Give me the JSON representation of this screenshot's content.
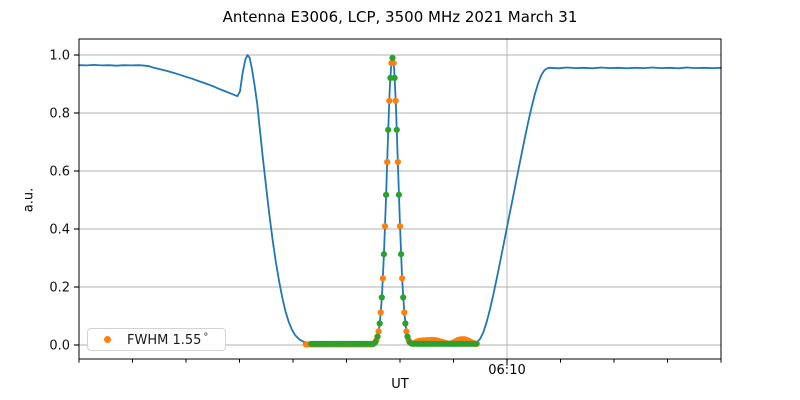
{
  "chart_data": {
    "type": "line",
    "title": "Antenna E3006, LCP, 3500 MHz 2021 March 31",
    "xlabel": "UT",
    "ylabel": "a.u.",
    "ylim": [
      -0.05,
      1.05
    ],
    "grid": {
      "horizontal": true,
      "vertical_at_major_ticks": true,
      "color": "#b0b0b0"
    },
    "yticks": {
      "values": [
        0.0,
        0.2,
        0.4,
        0.6,
        0.8,
        1.0
      ],
      "labels": [
        "0.0",
        "0.2",
        "0.4",
        "0.6",
        "0.8",
        "1.0"
      ]
    },
    "xaxis": {
      "range_minutes": [
        0,
        60
      ],
      "minor_tick_step_minutes": 5,
      "major_ticks": [
        {
          "t_minutes": 40,
          "label": "06:10"
        }
      ]
    },
    "legend": {
      "position": "lower left",
      "entries": [
        {
          "label": "FWHM 1.55",
          "degree_symbol": "°",
          "marker_color": "#ff7f0e"
        }
      ]
    },
    "series": [
      {
        "name": "drift-scan-signal",
        "type": "line",
        "color": "#1f77b4",
        "points": [
          [
            0.0,
            0.965
          ],
          [
            0.7,
            0.964
          ],
          [
            1.4,
            0.966
          ],
          [
            2.1,
            0.964
          ],
          [
            2.8,
            0.965
          ],
          [
            3.5,
            0.963
          ],
          [
            4.2,
            0.965
          ],
          [
            4.9,
            0.964
          ],
          [
            5.6,
            0.965
          ],
          [
            6.2,
            0.963
          ],
          [
            6.6,
            0.961
          ],
          [
            7.0,
            0.956
          ],
          [
            7.6,
            0.951
          ],
          [
            8.2,
            0.945
          ],
          [
            8.8,
            0.939
          ],
          [
            9.4,
            0.932
          ],
          [
            10.0,
            0.925
          ],
          [
            10.6,
            0.918
          ],
          [
            11.2,
            0.91
          ],
          [
            11.8,
            0.902
          ],
          [
            12.4,
            0.894
          ],
          [
            13.0,
            0.885
          ],
          [
            13.6,
            0.876
          ],
          [
            14.2,
            0.867
          ],
          [
            14.8,
            0.858
          ],
          [
            15.05,
            0.875
          ],
          [
            15.3,
            0.94
          ],
          [
            15.55,
            0.985
          ],
          [
            15.75,
            1.0
          ],
          [
            15.95,
            0.99
          ],
          [
            16.15,
            0.955
          ],
          [
            16.4,
            0.898
          ],
          [
            16.65,
            0.832
          ],
          [
            16.9,
            0.745
          ],
          [
            17.2,
            0.64
          ],
          [
            17.5,
            0.54
          ],
          [
            17.8,
            0.445
          ],
          [
            18.1,
            0.36
          ],
          [
            18.4,
            0.285
          ],
          [
            18.7,
            0.22
          ],
          [
            19.0,
            0.163
          ],
          [
            19.3,
            0.116
          ],
          [
            19.6,
            0.08
          ],
          [
            19.9,
            0.053
          ],
          [
            20.2,
            0.034
          ],
          [
            20.6,
            0.019
          ],
          [
            21.0,
            0.011
          ],
          [
            21.5,
            0.007
          ],
          [
            22.2,
            0.005
          ],
          [
            23.0,
            0.005
          ],
          [
            24.0,
            0.004
          ],
          [
            25.0,
            0.005
          ],
          [
            26.0,
            0.004
          ],
          [
            27.0,
            0.005
          ],
          [
            27.5,
            0.007
          ],
          [
            27.9,
            0.025
          ],
          [
            28.1,
            0.07
          ],
          [
            28.3,
            0.16
          ],
          [
            28.5,
            0.31
          ],
          [
            28.7,
            0.515
          ],
          [
            28.9,
            0.74
          ],
          [
            29.05,
            0.89
          ],
          [
            29.2,
            0.975
          ],
          [
            29.3,
            0.995
          ],
          [
            29.45,
            0.955
          ],
          [
            29.6,
            0.845
          ],
          [
            29.8,
            0.625
          ],
          [
            30.0,
            0.41
          ],
          [
            30.2,
            0.23
          ],
          [
            30.4,
            0.112
          ],
          [
            30.6,
            0.047
          ],
          [
            30.8,
            0.017
          ],
          [
            31.0,
            0.008
          ],
          [
            31.4,
            0.005
          ],
          [
            32.0,
            0.004
          ],
          [
            33.0,
            0.004
          ],
          [
            34.0,
            0.005
          ],
          [
            35.0,
            0.004
          ],
          [
            36.0,
            0.005
          ],
          [
            36.8,
            0.006
          ],
          [
            37.2,
            0.01
          ],
          [
            37.5,
            0.022
          ],
          [
            37.8,
            0.045
          ],
          [
            38.1,
            0.08
          ],
          [
            38.4,
            0.122
          ],
          [
            38.7,
            0.17
          ],
          [
            39.0,
            0.222
          ],
          [
            39.3,
            0.276
          ],
          [
            39.6,
            0.331
          ],
          [
            39.9,
            0.387
          ],
          [
            40.2,
            0.443
          ],
          [
            40.5,
            0.499
          ],
          [
            40.8,
            0.555
          ],
          [
            41.1,
            0.611
          ],
          [
            41.4,
            0.666
          ],
          [
            41.7,
            0.72
          ],
          [
            42.0,
            0.772
          ],
          [
            42.3,
            0.82
          ],
          [
            42.6,
            0.864
          ],
          [
            42.9,
            0.901
          ],
          [
            43.2,
            0.93
          ],
          [
            43.5,
            0.948
          ],
          [
            43.8,
            0.955
          ],
          [
            44.0,
            0.956
          ],
          [
            44.8,
            0.954
          ],
          [
            45.6,
            0.957
          ],
          [
            46.4,
            0.955
          ],
          [
            47.2,
            0.956
          ],
          [
            48.0,
            0.954
          ],
          [
            48.8,
            0.957
          ],
          [
            49.6,
            0.955
          ],
          [
            50.4,
            0.956
          ],
          [
            51.2,
            0.954
          ],
          [
            52.0,
            0.956
          ],
          [
            52.8,
            0.955
          ],
          [
            53.6,
            0.957
          ],
          [
            54.4,
            0.955
          ],
          [
            55.2,
            0.956
          ],
          [
            56.0,
            0.954
          ],
          [
            56.8,
            0.957
          ],
          [
            57.6,
            0.955
          ],
          [
            58.4,
            0.956
          ],
          [
            59.2,
            0.955
          ],
          [
            60.0,
            0.956
          ]
        ]
      },
      {
        "name": "fwhm-fit-samples-orange",
        "type": "scatter",
        "color": "#ff7f0e",
        "points": [
          {
            "flat": [
              21.2,
              27.4,
              0.2,
              0.002
            ]
          },
          [
            27.6,
            0.006
          ],
          [
            27.8,
            0.017
          ],
          [
            28.0,
            0.047
          ],
          [
            28.2,
            0.112
          ],
          [
            28.4,
            0.23
          ],
          [
            28.6,
            0.41
          ],
          [
            28.8,
            0.631
          ],
          [
            29.0,
            0.842
          ],
          [
            29.2,
            0.972
          ],
          [
            29.4,
            0.972
          ],
          [
            29.6,
            0.842
          ],
          [
            29.8,
            0.631
          ],
          [
            30.0,
            0.41
          ],
          [
            30.2,
            0.23
          ],
          [
            30.4,
            0.112
          ],
          [
            30.6,
            0.047
          ],
          [
            30.8,
            0.017
          ],
          [
            31.0,
            0.006
          ],
          [
            31.2,
            0.004
          ],
          [
            31.4,
            0.008
          ],
          [
            31.6,
            0.012
          ],
          [
            31.8,
            0.014
          ],
          [
            32.0,
            0.015
          ],
          [
            32.2,
            0.016
          ],
          [
            32.4,
            0.016
          ],
          [
            32.6,
            0.017
          ],
          [
            32.8,
            0.017
          ],
          [
            33.0,
            0.018
          ],
          [
            33.2,
            0.017
          ],
          [
            33.4,
            0.016
          ],
          [
            33.6,
            0.014
          ],
          [
            33.8,
            0.012
          ],
          [
            34.0,
            0.01
          ],
          [
            34.2,
            0.008
          ],
          [
            34.4,
            0.006
          ],
          [
            34.6,
            0.005
          ],
          [
            34.8,
            0.006
          ],
          [
            35.0,
            0.009
          ],
          [
            35.2,
            0.013
          ],
          [
            35.4,
            0.017
          ],
          [
            35.6,
            0.019
          ],
          [
            35.8,
            0.02
          ],
          [
            36.0,
            0.02
          ],
          [
            36.2,
            0.018
          ],
          [
            36.4,
            0.015
          ],
          [
            36.6,
            0.011
          ],
          [
            36.8,
            0.008
          ],
          [
            37.0,
            0.005
          ],
          [
            37.2,
            0.004
          ]
        ]
      },
      {
        "name": "fit-samples-green",
        "type": "scatter",
        "color": "#2ca02c",
        "points": [
          {
            "flat": [
              21.7,
              27.5,
              0.2,
              0.004
            ]
          },
          [
            27.7,
            0.01
          ],
          [
            27.9,
            0.029
          ],
          [
            28.1,
            0.074
          ],
          [
            28.3,
            0.164
          ],
          [
            28.5,
            0.313
          ],
          [
            28.7,
            0.518
          ],
          [
            28.9,
            0.742
          ],
          [
            29.1,
            0.921
          ],
          [
            29.3,
            0.99
          ],
          [
            29.5,
            0.921
          ],
          [
            29.7,
            0.742
          ],
          [
            29.9,
            0.518
          ],
          [
            30.1,
            0.313
          ],
          [
            30.3,
            0.164
          ],
          [
            30.5,
            0.074
          ],
          [
            30.7,
            0.029
          ],
          [
            30.9,
            0.01
          ],
          [
            31.1,
            0.005
          ],
          {
            "flat": [
              31.3,
              37.1,
              0.2,
              0.004
            ]
          }
        ]
      }
    ]
  }
}
